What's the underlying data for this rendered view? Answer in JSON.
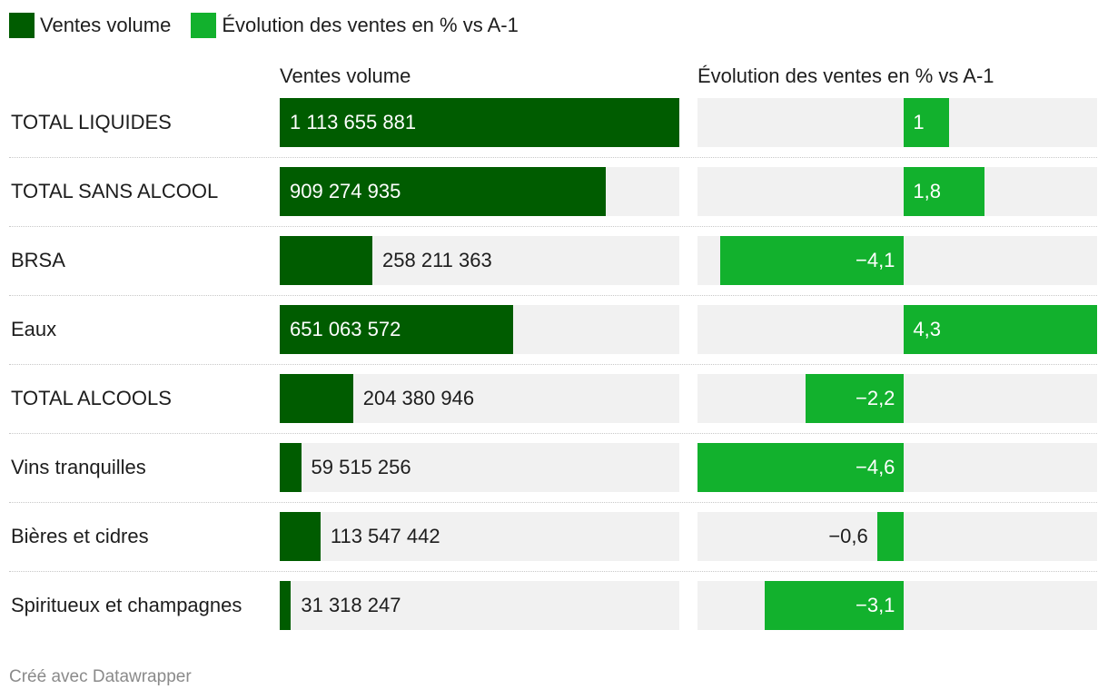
{
  "colors": {
    "volume": "#005c00",
    "evolution": "#12b12d",
    "track": "#f1f1f1",
    "label_on_bar": "#ffffff",
    "label_off_bar": "#1d1d1d"
  },
  "legend": {
    "items": [
      {
        "label": "Ventes volume",
        "color": "#005c00"
      },
      {
        "label": "Évolution des ventes en % vs A-1",
        "color": "#12b12d"
      }
    ]
  },
  "chart_data": {
    "type": "bar",
    "orientation": "horizontal",
    "columns": [
      {
        "title": "Ventes volume",
        "series": "volume",
        "domain": [
          0,
          1113655881
        ]
      },
      {
        "title": "Évolution des ventes en % vs A-1",
        "series": "evolution",
        "domain": [
          -4.6,
          4.3
        ]
      }
    ],
    "rows": [
      {
        "category": "TOTAL LIQUIDES",
        "volume": 1113655881,
        "volume_label": "1 113 655 881",
        "evolution": 1,
        "evolution_label": "1"
      },
      {
        "category": "TOTAL SANS ALCOOL",
        "volume": 909274935,
        "volume_label": "909 274 935",
        "evolution": 1.8,
        "evolution_label": "1,8"
      },
      {
        "category": "BRSA",
        "volume": 258211363,
        "volume_label": "258 211 363",
        "evolution": -4.1,
        "evolution_label": "−4,1"
      },
      {
        "category": "Eaux",
        "volume": 651063572,
        "volume_label": "651 063 572",
        "evolution": 4.3,
        "evolution_label": "4,3"
      },
      {
        "category": "TOTAL ALCOOLS",
        "volume": 204380946,
        "volume_label": "204 380 946",
        "evolution": -2.2,
        "evolution_label": "−2,2"
      },
      {
        "category": "Vins tranquilles",
        "volume": 59515256,
        "volume_label": "59 515 256",
        "evolution": -4.6,
        "evolution_label": "−4,6"
      },
      {
        "category": "Bières et cidres",
        "volume": 113547442,
        "volume_label": "113 547 442",
        "evolution": -0.6,
        "evolution_label": "−0,6"
      },
      {
        "category": "Spiritueux et champagnes",
        "volume": 31318247,
        "volume_label": "31 318 247",
        "evolution": -3.1,
        "evolution_label": "−3,1"
      }
    ]
  },
  "footer": {
    "text": "Créé avec Datawrapper"
  }
}
